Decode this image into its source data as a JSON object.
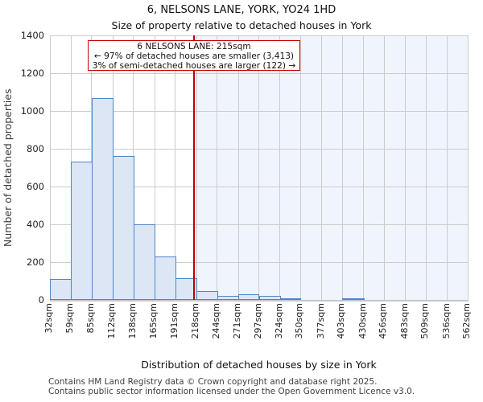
{
  "title": "6, NELSONS LANE, YORK, YO24 1HD",
  "subtitle": "Size of property relative to detached houses in York",
  "annotation": {
    "line1": "6 NELSONS LANE: 215sqm",
    "line2": "← 97% of detached houses are smaller (3,413)",
    "line3": "3% of semi-detached houses are larger (122) →"
  },
  "footer": {
    "line1": "Contains HM Land Registry data © Crown copyright and database right 2025.",
    "line2": "Contains public sector information licensed under the Open Government Licence v3.0."
  },
  "chart_data": {
    "type": "bar",
    "title": "6, NELSONS LANE, YORK, YO24 1HD",
    "subtitle": "Size of property relative to detached houses in York",
    "xlabel": "Distribution of detached houses by size in York",
    "ylabel": "Number of detached properties",
    "bin_edges": [
      32,
      59,
      85,
      112,
      138,
      165,
      191,
      218,
      244,
      271,
      297,
      324,
      350,
      377,
      403,
      430,
      456,
      483,
      509,
      536,
      562
    ],
    "categories": [
      "32sqm",
      "59sqm",
      "85sqm",
      "112sqm",
      "138sqm",
      "165sqm",
      "191sqm",
      "218sqm",
      "244sqm",
      "271sqm",
      "297sqm",
      "324sqm",
      "350sqm",
      "377sqm",
      "403sqm",
      "430sqm",
      "456sqm",
      "483sqm",
      "509sqm",
      "536sqm",
      "562sqm"
    ],
    "values": [
      110,
      730,
      1070,
      760,
      400,
      230,
      115,
      45,
      20,
      30,
      20,
      5,
      0,
      0,
      5,
      0,
      0,
      0,
      0,
      0
    ],
    "xlim": [
      32,
      562
    ],
    "ylim": [
      0,
      1400
    ],
    "yticks": [
      0,
      200,
      400,
      600,
      800,
      1000,
      1200,
      1400
    ],
    "grid": true,
    "legend": "none",
    "marker": {
      "value": 215,
      "label": "6 NELSONS LANE: 215sqm"
    },
    "shaded_region": {
      "from": 215,
      "to": 562
    },
    "colors": {
      "bar_fill": "#dce6f4",
      "bar_edge": "#4e86c8",
      "marker_line": "#c00000",
      "annotation_border": "#c00000",
      "shade": "#f0f4fc",
      "grid": "#cccccc"
    }
  }
}
